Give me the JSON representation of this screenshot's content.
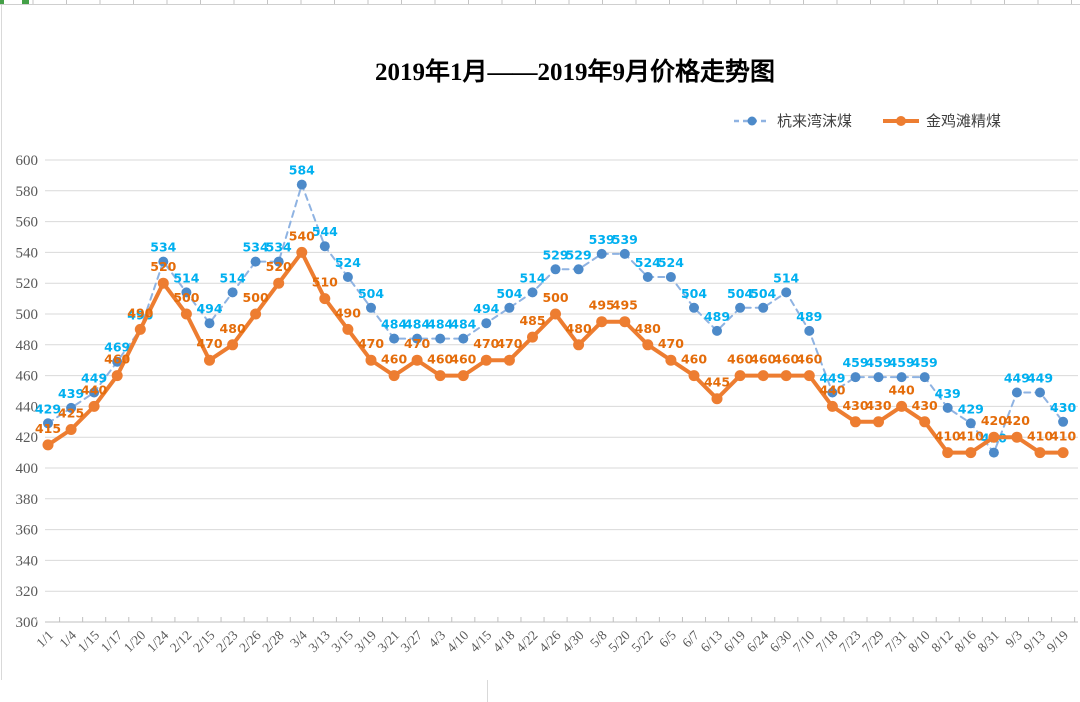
{
  "chart_data": {
    "type": "line",
    "title": "2019年1月——2019年9月价格走势图",
    "xlabel": "",
    "ylabel": "",
    "categories": [
      "1/1",
      "1/4",
      "1/15",
      "1/17",
      "1/20",
      "1/24",
      "2/12",
      "2/15",
      "2/23",
      "2/26",
      "2/28",
      "3/4",
      "3/13",
      "3/15",
      "3/19",
      "3/21",
      "3/27",
      "4/3",
      "4/10",
      "4/15",
      "4/18",
      "4/22",
      "4/26",
      "4/30",
      "5/8",
      "5/20",
      "5/22",
      "6/5",
      "6/7",
      "6/13",
      "6/19",
      "6/24",
      "6/30",
      "7/10",
      "7/18",
      "7/23",
      "7/29",
      "7/31",
      "8/10",
      "8/12",
      "8/16",
      "8/31",
      "9/3",
      "9/13",
      "9/19"
    ],
    "series": [
      {
        "name": "杭来湾沫煤",
        "style": "dashed",
        "line_color": "#8FB3E2",
        "marker_color": "#4D8AC9",
        "label_color": "#00B0F0",
        "values": [
          429,
          439,
          449,
          469,
          490,
          534,
          514,
          494,
          514,
          534,
          534,
          584,
          544,
          524,
          504,
          484,
          484,
          484,
          484,
          494,
          504,
          514,
          529,
          529,
          539,
          539,
          524,
          524,
          504,
          489,
          504,
          504,
          514,
          489,
          449,
          459,
          459,
          459,
          459,
          439,
          429,
          410,
          449,
          449,
          430
        ]
      },
      {
        "name": "金鸡滩精煤",
        "style": "solid",
        "line_color": "#ED7D31",
        "marker_color": "#ED7D31",
        "label_color": "#E46C0A",
        "values": [
          415,
          425,
          440,
          460,
          490,
          520,
          500,
          470,
          480,
          500,
          520,
          540,
          510,
          490,
          470,
          460,
          470,
          460,
          460,
          470,
          470,
          485,
          500,
          480,
          495,
          495,
          480,
          470,
          460,
          445,
          460,
          460,
          460,
          460,
          440,
          430,
          430,
          440,
          430,
          410,
          410,
          420,
          420,
          410,
          410
        ]
      }
    ],
    "ylim": [
      300,
      600
    ],
    "y_tick_step": 20,
    "y_tick_labels": [
      600,
      580,
      560,
      540,
      520,
      500,
      480,
      460,
      440,
      420,
      400,
      380,
      360,
      340,
      320,
      300
    ],
    "grid": "horizontal",
    "legend_position": "top-right",
    "axis_label_color": "#595959",
    "grid_color": "#D9D9D9",
    "axis_line_color": "#BFBFBF"
  }
}
